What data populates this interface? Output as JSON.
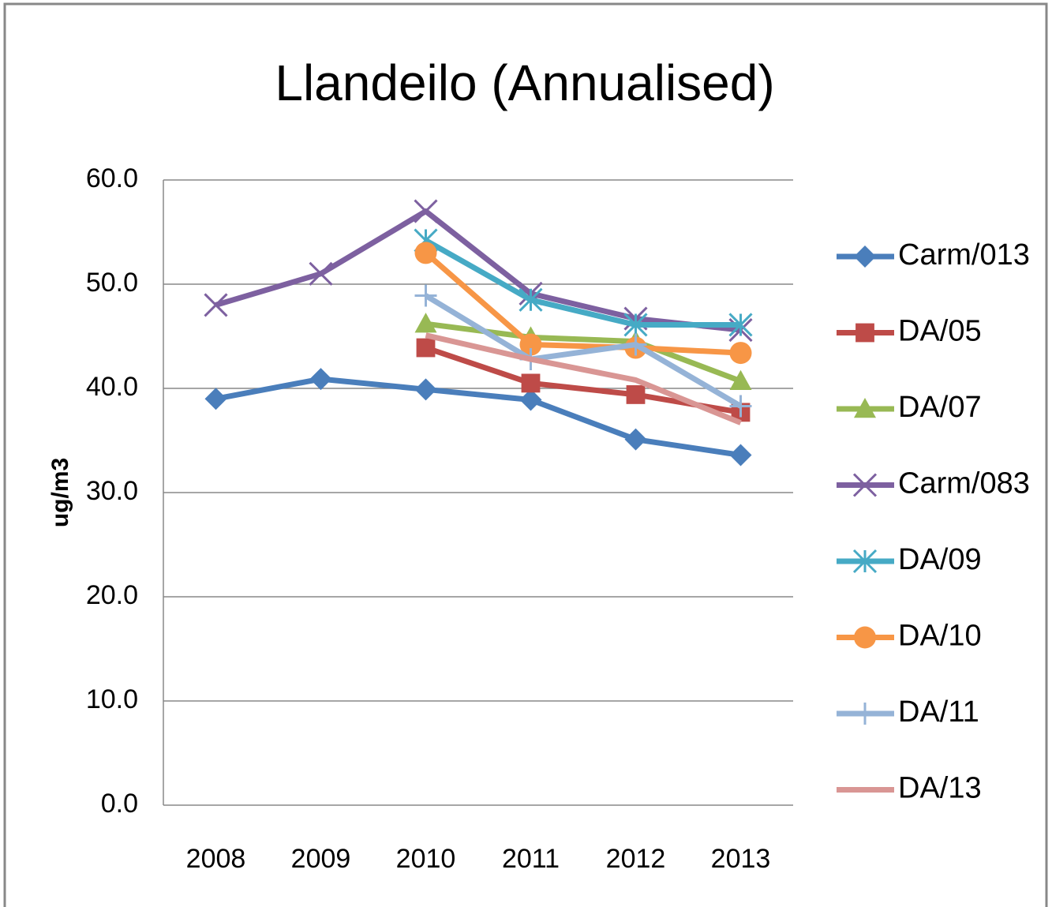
{
  "chart_data": {
    "type": "line",
    "title": "Llandeilo (Annualised)",
    "y_label": "ug/m3",
    "categories": [
      "2008",
      "2009",
      "2010",
      "2011",
      "2012",
      "2013"
    ],
    "ylim": [
      0,
      60
    ],
    "yticks": [
      {
        "value": 0,
        "label": "0.0"
      },
      {
        "value": 10,
        "label": "10.0"
      },
      {
        "value": 20,
        "label": "20.0"
      },
      {
        "value": 30,
        "label": "30.0"
      },
      {
        "value": 40,
        "label": "40.0"
      },
      {
        "value": 50,
        "label": "50.0"
      },
      {
        "value": 60,
        "label": "60.0"
      }
    ],
    "grid": true,
    "legend": "right",
    "series": [
      {
        "name": "Carm/013",
        "color": "#4a7ebb",
        "marker": "diamond",
        "values": [
          39.0,
          40.9,
          39.9,
          38.9,
          35.1,
          33.6
        ]
      },
      {
        "name": "DA/05",
        "color": "#be4b48",
        "marker": "square",
        "values": [
          null,
          null,
          43.9,
          40.5,
          39.4,
          37.7
        ]
      },
      {
        "name": "DA/07",
        "color": "#98b954",
        "marker": "triangle",
        "values": [
          null,
          null,
          46.2,
          44.9,
          44.5,
          40.7
        ]
      },
      {
        "name": "Carm/083",
        "color": "#7d60a0",
        "marker": "x",
        "values": [
          48.0,
          51.0,
          57.0,
          49.1,
          46.7,
          45.6
        ]
      },
      {
        "name": "DA/09",
        "color": "#46aac5",
        "marker": "star",
        "values": [
          null,
          null,
          54.2,
          48.5,
          46.1,
          46.1
        ]
      },
      {
        "name": "DA/10",
        "color": "#f79646",
        "marker": "circle",
        "values": [
          null,
          null,
          53.0,
          44.2,
          43.9,
          43.4
        ]
      },
      {
        "name": "DA/11",
        "color": "#95b3d7",
        "marker": "plus",
        "values": [
          null,
          null,
          48.9,
          42.8,
          44.2,
          38.3
        ]
      },
      {
        "name": "DA/13",
        "color": "#d99694",
        "marker": "none",
        "values": [
          null,
          null,
          45.1,
          42.8,
          40.8,
          36.7
        ]
      }
    ]
  }
}
